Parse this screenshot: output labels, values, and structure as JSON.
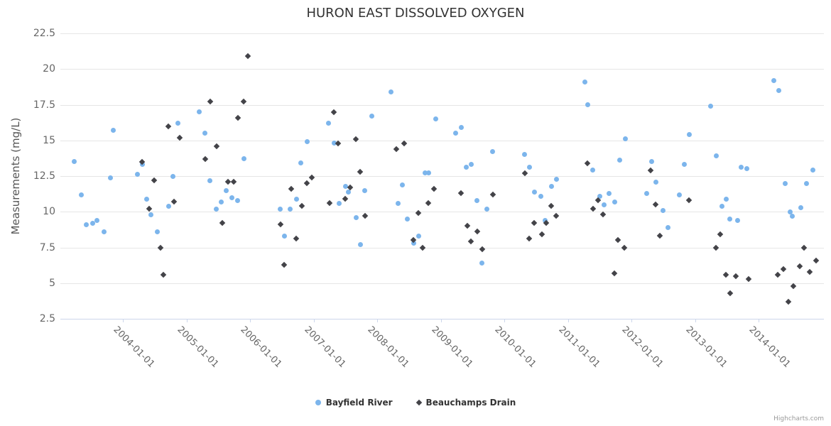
{
  "credits": "Highcharts.com",
  "colors": {
    "title_text": "#333333",
    "axis_label_text": "#666666",
    "y_title_text": "#555555",
    "gridline": "#e6e6e6",
    "axis_line": "#ccd6eb",
    "legend_text": "#333333",
    "credits_text": "#999999",
    "series_bayfield": "#7cb5ec",
    "series_beauchamps": "#434348"
  },
  "chart_data": {
    "type": "scatter",
    "title": "HURON EAST DISSOLVED OXYGEN",
    "xlabel": "",
    "ylabel": "Measurements (mg/L)",
    "ylim": [
      2.5,
      22.5
    ],
    "y_ticks": [
      2.5,
      5,
      7.5,
      10,
      12.5,
      15,
      17.5,
      20,
      22.5
    ],
    "y_tick_labels": [
      "2.5",
      "5",
      "7.5",
      "10",
      "12.5",
      "15",
      "17.5",
      "20",
      "22.5"
    ],
    "x_tick_labels": [
      "2004-01-01",
      "2005-01-01",
      "2006-01-01",
      "2007-01-01",
      "2008-01-01",
      "2009-01-01",
      "2010-01-01",
      "2011-01-01",
      "2012-01-01",
      "2013-01-01",
      "2014-01-01"
    ],
    "x_tick_years": [
      2004,
      2005,
      2006,
      2007,
      2008,
      2009,
      2010,
      2011,
      2012,
      2013,
      2014
    ],
    "x_range_years": [
      2003.02,
      2015.03
    ],
    "grid": "horizontal-only",
    "legend_position": "bottom-center",
    "series": [
      {
        "name": "Bayfield River",
        "marker": "circle",
        "color": "#7cb5ec",
        "points": [
          [
            2003.24,
            13.5
          ],
          [
            2003.35,
            11.2
          ],
          [
            2003.43,
            9.1
          ],
          [
            2003.52,
            9.2
          ],
          [
            2003.59,
            9.4
          ],
          [
            2003.7,
            8.6
          ],
          [
            2003.81,
            12.4
          ],
          [
            2003.85,
            15.7
          ],
          [
            2004.23,
            12.6
          ],
          [
            2004.31,
            13.3
          ],
          [
            2004.37,
            10.9
          ],
          [
            2004.44,
            9.8
          ],
          [
            2004.54,
            8.6
          ],
          [
            2004.72,
            10.4
          ],
          [
            2004.79,
            12.5
          ],
          [
            2004.87,
            16.2
          ],
          [
            2005.2,
            17.0
          ],
          [
            2005.29,
            15.5
          ],
          [
            2005.37,
            12.2
          ],
          [
            2005.47,
            10.2
          ],
          [
            2005.55,
            10.7
          ],
          [
            2005.63,
            11.5
          ],
          [
            2005.72,
            11.0
          ],
          [
            2005.8,
            10.8
          ],
          [
            2005.9,
            13.7
          ],
          [
            2006.48,
            10.2
          ],
          [
            2006.54,
            8.3
          ],
          [
            2006.63,
            10.2
          ],
          [
            2006.73,
            10.9
          ],
          [
            2006.8,
            13.4
          ],
          [
            2006.9,
            14.9
          ],
          [
            2007.23,
            16.2
          ],
          [
            2007.32,
            14.8
          ],
          [
            2007.4,
            10.6
          ],
          [
            2007.5,
            11.8
          ],
          [
            2007.55,
            11.4
          ],
          [
            2007.67,
            9.6
          ],
          [
            2007.74,
            7.7
          ],
          [
            2007.81,
            11.5
          ],
          [
            2007.92,
            16.7
          ],
          [
            2008.22,
            18.4
          ],
          [
            2008.33,
            10.6
          ],
          [
            2008.4,
            11.9
          ],
          [
            2008.47,
            9.5
          ],
          [
            2008.57,
            7.8
          ],
          [
            2008.65,
            8.3
          ],
          [
            2008.75,
            12.7
          ],
          [
            2008.81,
            12.7
          ],
          [
            2008.92,
            16.5
          ],
          [
            2009.23,
            15.5
          ],
          [
            2009.32,
            15.9
          ],
          [
            2009.4,
            13.1
          ],
          [
            2009.48,
            13.3
          ],
          [
            2009.57,
            10.8
          ],
          [
            2009.65,
            6.4
          ],
          [
            2009.73,
            10.2
          ],
          [
            2009.82,
            14.2
          ],
          [
            2010.32,
            14.0
          ],
          [
            2010.4,
            13.1
          ],
          [
            2010.47,
            11.4
          ],
          [
            2010.57,
            11.1
          ],
          [
            2010.64,
            9.4
          ],
          [
            2010.74,
            11.8
          ],
          [
            2010.82,
            12.3
          ],
          [
            2011.27,
            19.1
          ],
          [
            2011.31,
            17.5
          ],
          [
            2011.39,
            12.9
          ],
          [
            2011.5,
            11.1
          ],
          [
            2011.57,
            10.5
          ],
          [
            2011.65,
            11.3
          ],
          [
            2011.74,
            10.7
          ],
          [
            2011.82,
            13.6
          ],
          [
            2011.9,
            15.1
          ],
          [
            2012.24,
            11.3
          ],
          [
            2012.32,
            13.5
          ],
          [
            2012.39,
            12.1
          ],
          [
            2012.5,
            10.1
          ],
          [
            2012.58,
            8.9
          ],
          [
            2012.75,
            11.2
          ],
          [
            2012.83,
            13.3
          ],
          [
            2012.91,
            15.4
          ],
          [
            2013.25,
            17.4
          ],
          [
            2013.33,
            13.9
          ],
          [
            2013.42,
            10.4
          ],
          [
            2013.49,
            10.9
          ],
          [
            2013.55,
            9.5
          ],
          [
            2013.67,
            9.4
          ],
          [
            2013.73,
            13.1
          ],
          [
            2013.82,
            13.0
          ],
          [
            2014.24,
            19.2
          ],
          [
            2014.32,
            18.5
          ],
          [
            2014.42,
            12.0
          ],
          [
            2014.5,
            10.0
          ],
          [
            2014.53,
            9.7
          ],
          [
            2014.66,
            10.3
          ],
          [
            2014.75,
            12.0
          ],
          [
            2014.85,
            12.9
          ]
        ]
      },
      {
        "name": "Beauchamps Drain",
        "marker": "diamond",
        "color": "#434348",
        "points": [
          [
            2004.3,
            13.5
          ],
          [
            2004.41,
            10.2
          ],
          [
            2004.49,
            12.2
          ],
          [
            2004.59,
            7.5
          ],
          [
            2004.64,
            5.6
          ],
          [
            2004.72,
            16.0
          ],
          [
            2004.81,
            10.7
          ],
          [
            2004.89,
            15.2
          ],
          [
            2005.3,
            13.7
          ],
          [
            2005.37,
            17.7
          ],
          [
            2005.47,
            14.6
          ],
          [
            2005.56,
            9.2
          ],
          [
            2005.65,
            12.1
          ],
          [
            2005.74,
            12.1
          ],
          [
            2005.81,
            16.6
          ],
          [
            2005.9,
            17.7
          ],
          [
            2005.97,
            20.9
          ],
          [
            2006.48,
            9.1
          ],
          [
            2006.54,
            6.3
          ],
          [
            2006.65,
            11.6
          ],
          [
            2006.73,
            8.1
          ],
          [
            2006.82,
            10.4
          ],
          [
            2006.89,
            12.0
          ],
          [
            2006.97,
            12.4
          ],
          [
            2007.25,
            10.6
          ],
          [
            2007.32,
            17.0
          ],
          [
            2007.39,
            14.8
          ],
          [
            2007.5,
            10.9
          ],
          [
            2007.57,
            11.7
          ],
          [
            2007.67,
            15.1
          ],
          [
            2007.73,
            12.8
          ],
          [
            2007.81,
            9.7
          ],
          [
            2008.3,
            14.4
          ],
          [
            2008.42,
            14.8
          ],
          [
            2008.57,
            8.0
          ],
          [
            2008.65,
            9.9
          ],
          [
            2008.72,
            7.5
          ],
          [
            2008.81,
            10.6
          ],
          [
            2008.89,
            11.6
          ],
          [
            2009.32,
            11.3
          ],
          [
            2009.42,
            9.0
          ],
          [
            2009.48,
            7.9
          ],
          [
            2009.57,
            8.6
          ],
          [
            2009.65,
            7.4
          ],
          [
            2009.82,
            11.2
          ],
          [
            2010.32,
            12.7
          ],
          [
            2010.39,
            8.1
          ],
          [
            2010.47,
            9.2
          ],
          [
            2010.59,
            8.4
          ],
          [
            2010.66,
            9.2
          ],
          [
            2010.74,
            10.4
          ],
          [
            2010.82,
            9.7
          ],
          [
            2011.31,
            13.4
          ],
          [
            2011.4,
            10.2
          ],
          [
            2011.48,
            10.8
          ],
          [
            2011.55,
            9.8
          ],
          [
            2011.73,
            5.7
          ],
          [
            2011.79,
            8.0
          ],
          [
            2011.89,
            7.5
          ],
          [
            2012.3,
            12.9
          ],
          [
            2012.38,
            10.5
          ],
          [
            2012.45,
            8.3
          ],
          [
            2012.9,
            10.8
          ],
          [
            2013.33,
            7.5
          ],
          [
            2013.4,
            8.4
          ],
          [
            2013.49,
            5.6
          ],
          [
            2013.55,
            4.3
          ],
          [
            2013.64,
            5.5
          ],
          [
            2013.84,
            5.3
          ],
          [
            2014.3,
            5.6
          ],
          [
            2014.39,
            6.0
          ],
          [
            2014.47,
            3.7
          ],
          [
            2014.55,
            4.8
          ],
          [
            2014.65,
            6.2
          ],
          [
            2014.72,
            7.5
          ],
          [
            2014.8,
            5.8
          ],
          [
            2014.9,
            6.6
          ]
        ]
      }
    ]
  }
}
